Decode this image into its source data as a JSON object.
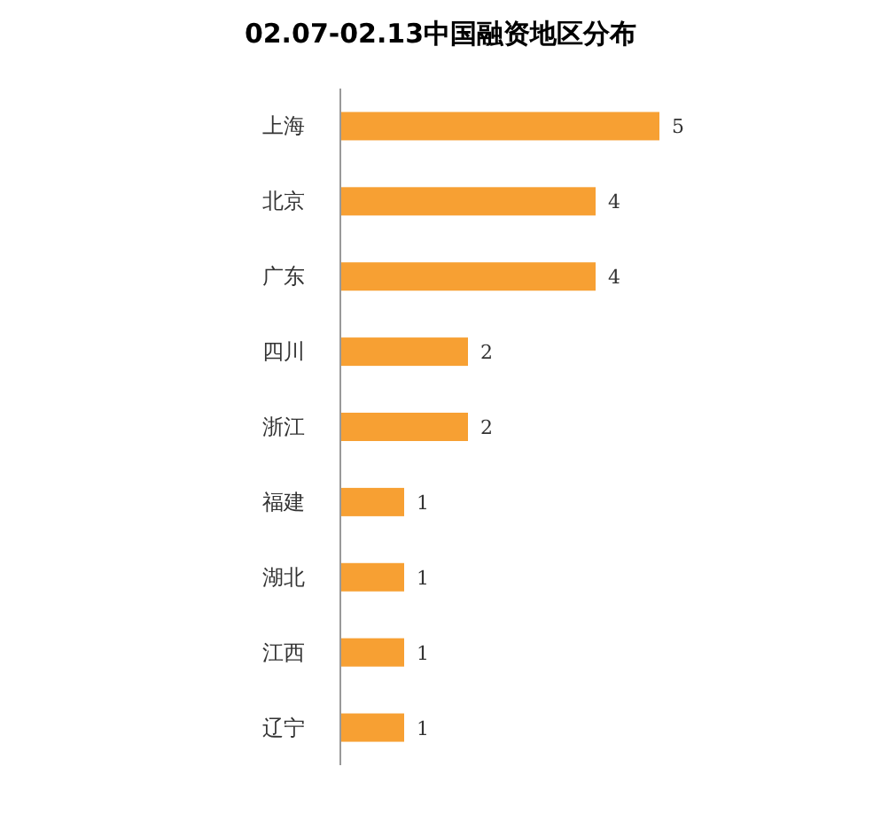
{
  "chart_data": {
    "type": "bar",
    "orientation": "horizontal",
    "title": "02.07-02.13中国融资地区分布",
    "categories": [
      "上海",
      "北京",
      "广东",
      "四川",
      "浙江",
      "福建",
      "湖北",
      "江西",
      "辽宁"
    ],
    "values": [
      5,
      4,
      4,
      2,
      2,
      1,
      1,
      1,
      1
    ],
    "color": "#f7a033",
    "data_labels": true
  }
}
